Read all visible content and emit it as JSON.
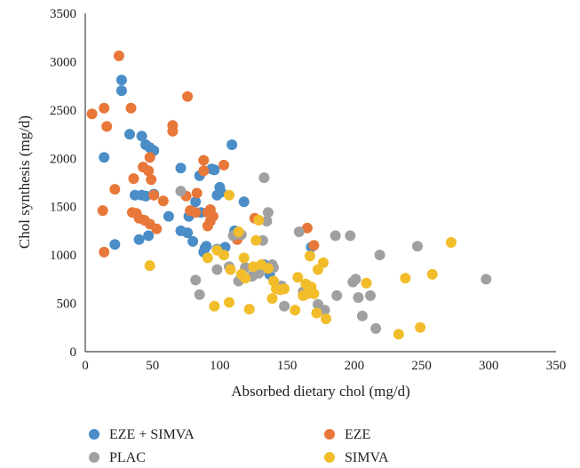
{
  "chart_data": {
    "type": "scatter",
    "xlabel": "Absorbed dietary chol (mg/d)",
    "ylabel": "Chol synthesis (mg/d)",
    "xlim": [
      0,
      350
    ],
    "ylim": [
      0,
      3500
    ],
    "xticks": [
      "0",
      "50",
      "100",
      "150",
      "200",
      "250",
      "300",
      "350"
    ],
    "yticks": [
      "0",
      "500",
      "1000",
      "1500",
      "2000",
      "2500",
      "3000",
      "3500"
    ],
    "grid": false,
    "legend_position": "bottom",
    "series": [
      {
        "name": "EZE + SIMVA",
        "color": "#4a8dc7",
        "points": [
          [
            14,
            2010
          ],
          [
            22,
            1110
          ],
          [
            27,
            2810
          ],
          [
            27,
            2700
          ],
          [
            33,
            2250
          ],
          [
            37,
            1620
          ],
          [
            40,
            1160
          ],
          [
            42,
            1620
          ],
          [
            42,
            2230
          ],
          [
            45,
            1610
          ],
          [
            45,
            2140
          ],
          [
            47,
            1200
          ],
          [
            48,
            2110
          ],
          [
            51,
            2080
          ],
          [
            51,
            1630
          ],
          [
            62,
            1400
          ],
          [
            71,
            1900
          ],
          [
            71,
            1250
          ],
          [
            76,
            1230
          ],
          [
            77,
            1400
          ],
          [
            80,
            1140
          ],
          [
            82,
            1550
          ],
          [
            85,
            1820
          ],
          [
            86,
            1440
          ],
          [
            88,
            1030
          ],
          [
            89,
            1070
          ],
          [
            90,
            1090
          ],
          [
            94,
            1890
          ],
          [
            96,
            1880
          ],
          [
            98,
            1620
          ],
          [
            98,
            1060
          ],
          [
            100,
            1700
          ],
          [
            101,
            1650
          ],
          [
            104,
            1080
          ],
          [
            109,
            2140
          ],
          [
            111,
            1250
          ],
          [
            112,
            1190
          ],
          [
            118,
            1550
          ],
          [
            133,
            900
          ],
          [
            137,
            800
          ],
          [
            168,
            1080
          ]
        ]
      },
      {
        "name": "EZE",
        "color": "#e8773a",
        "points": [
          [
            5,
            2460
          ],
          [
            13,
            1460
          ],
          [
            14,
            2520
          ],
          [
            14,
            1030
          ],
          [
            16,
            2330
          ],
          [
            22,
            1680
          ],
          [
            25,
            3060
          ],
          [
            34,
            2520
          ],
          [
            35,
            1440
          ],
          [
            36,
            1790
          ],
          [
            38,
            1430
          ],
          [
            40,
            1380
          ],
          [
            43,
            1910
          ],
          [
            44,
            1360
          ],
          [
            47,
            1870
          ],
          [
            48,
            1320
          ],
          [
            48,
            2010
          ],
          [
            49,
            1780
          ],
          [
            51,
            1620
          ],
          [
            53,
            1270
          ],
          [
            58,
            1560
          ],
          [
            65,
            2340
          ],
          [
            65,
            2280
          ],
          [
            75,
            1610
          ],
          [
            76,
            2640
          ],
          [
            78,
            1460
          ],
          [
            82,
            1440
          ],
          [
            83,
            1640
          ],
          [
            88,
            1980
          ],
          [
            88,
            1870
          ],
          [
            91,
            1300
          ],
          [
            91,
            1440
          ],
          [
            93,
            1470
          ],
          [
            93,
            1350
          ],
          [
            95,
            1400
          ],
          [
            103,
            1930
          ],
          [
            113,
            1160
          ],
          [
            126,
            1380
          ],
          [
            165,
            1280
          ],
          [
            170,
            1100
          ]
        ]
      },
      {
        "name": "PLAC",
        "color": "#a0a0a0",
        "points": [
          [
            71,
            1660
          ],
          [
            82,
            740
          ],
          [
            85,
            590
          ],
          [
            98,
            850
          ],
          [
            107,
            880
          ],
          [
            110,
            1200
          ],
          [
            113,
            1220
          ],
          [
            114,
            730
          ],
          [
            116,
            1210
          ],
          [
            119,
            870
          ],
          [
            124,
            780
          ],
          [
            129,
            810
          ],
          [
            132,
            1150
          ],
          [
            133,
            1800
          ],
          [
            135,
            1350
          ],
          [
            136,
            1440
          ],
          [
            139,
            900
          ],
          [
            140,
            870
          ],
          [
            146,
            680
          ],
          [
            148,
            470
          ],
          [
            159,
            1240
          ],
          [
            162,
            620
          ],
          [
            173,
            490
          ],
          [
            178,
            430
          ],
          [
            186,
            1200
          ],
          [
            187,
            580
          ],
          [
            197,
            1200
          ],
          [
            199,
            720
          ],
          [
            201,
            750
          ],
          [
            203,
            560
          ],
          [
            206,
            370
          ],
          [
            212,
            580
          ],
          [
            216,
            240
          ],
          [
            219,
            1000
          ],
          [
            247,
            1090
          ],
          [
            298,
            750
          ]
        ]
      },
      {
        "name": "SIMVA",
        "color": "#f2bd2b",
        "points": [
          [
            48,
            890
          ],
          [
            91,
            970
          ],
          [
            96,
            470
          ],
          [
            98,
            1050
          ],
          [
            103,
            1000
          ],
          [
            107,
            510
          ],
          [
            107,
            1620
          ],
          [
            108,
            850
          ],
          [
            114,
            1240
          ],
          [
            116,
            800
          ],
          [
            118,
            970
          ],
          [
            119,
            760
          ],
          [
            122,
            440
          ],
          [
            125,
            880
          ],
          [
            127,
            1150
          ],
          [
            129,
            1360
          ],
          [
            131,
            900
          ],
          [
            136,
            860
          ],
          [
            139,
            550
          ],
          [
            140,
            730
          ],
          [
            142,
            650
          ],
          [
            145,
            640
          ],
          [
            148,
            650
          ],
          [
            156,
            430
          ],
          [
            158,
            770
          ],
          [
            162,
            580
          ],
          [
            164,
            700
          ],
          [
            165,
            600
          ],
          [
            167,
            990
          ],
          [
            168,
            670
          ],
          [
            170,
            600
          ],
          [
            172,
            400
          ],
          [
            173,
            850
          ],
          [
            177,
            920
          ],
          [
            179,
            340
          ],
          [
            209,
            710
          ],
          [
            233,
            180
          ],
          [
            238,
            760
          ],
          [
            249,
            250
          ],
          [
            258,
            800
          ],
          [
            272,
            1130
          ]
        ]
      }
    ]
  }
}
